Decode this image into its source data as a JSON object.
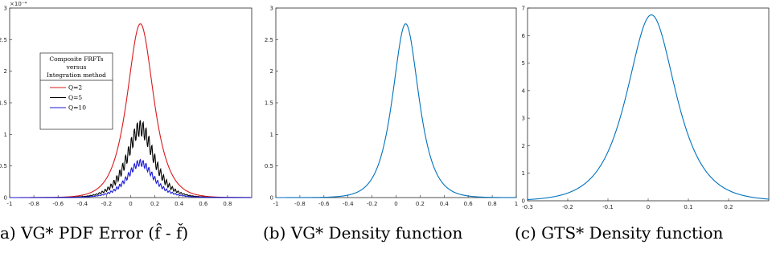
{
  "chart_data": [
    {
      "type": "line",
      "panel": "a",
      "caption": "a) VG* PDF Error (f̂ - f̌)",
      "xlim": [
        -1,
        1
      ],
      "ylim": [
        0,
        3
      ],
      "exponent_label": "×10⁻⁴",
      "xticks": [
        "-1",
        "-0.8",
        "-0.6",
        "-0.4",
        "-0.2",
        "0",
        "0.2",
        "0.4",
        "0.6",
        "0.8"
      ],
      "yticks": [
        "0",
        "0.5",
        "1",
        "1.5",
        "2",
        "2.5",
        "3"
      ],
      "legend": {
        "title": [
          "Composite FRFTs",
          "versus",
          "Integration method"
        ],
        "placement": "upper-left",
        "entries": [
          {
            "label": "Q=2",
            "color": "#d9191c"
          },
          {
            "label": "Q=5",
            "color": "#000000"
          },
          {
            "label": "Q=10",
            "color": "#1a1ad6"
          }
        ]
      },
      "series": [
        {
          "name": "Q=2",
          "color": "#d9191c",
          "peak": 2.75,
          "center": 0.08,
          "scale": 0.09,
          "noise": 0
        },
        {
          "name": "Q=5",
          "color": "#000000",
          "peak": 1.1,
          "center": 0.08,
          "scale": 0.09,
          "noise": 0.012
        },
        {
          "name": "Q=10",
          "color": "#1a1ad6",
          "peak": 0.55,
          "center": 0.08,
          "scale": 0.09,
          "noise": 0.01
        }
      ]
    },
    {
      "type": "line",
      "panel": "b",
      "caption": "(b) VG* Density function",
      "xlim": [
        -1,
        1
      ],
      "ylim": [
        0,
        3
      ],
      "xticks": [
        "-1",
        "-0.8",
        "-0.6",
        "-0.4",
        "-0.2",
        "0",
        "0.2",
        "0.4",
        "0.6",
        "0.8",
        "1"
      ],
      "yticks": [
        "0",
        "0.5",
        "1",
        "1.5",
        "2",
        "2.5",
        "3"
      ],
      "series": [
        {
          "name": "",
          "color": "#0072bd",
          "peak": 2.75,
          "center": 0.08,
          "scale": 0.09,
          "noise": 0
        }
      ]
    },
    {
      "type": "line",
      "panel": "c",
      "caption": "(c) GTS* Density function",
      "xlim": [
        -0.3,
        0.3
      ],
      "ylim": [
        0,
        7
      ],
      "xticks": [
        "-0.3",
        "-0.2",
        "-0.1",
        "0",
        "0.1",
        "0.2"
      ],
      "yticks": [
        "0",
        "1",
        "2",
        "3",
        "4",
        "5",
        "6",
        "7"
      ],
      "series": [
        {
          "name": "",
          "color": "#0072bd",
          "peak": 6.75,
          "center": 0.008,
          "scale": 0.05,
          "noise": 0
        }
      ]
    }
  ]
}
